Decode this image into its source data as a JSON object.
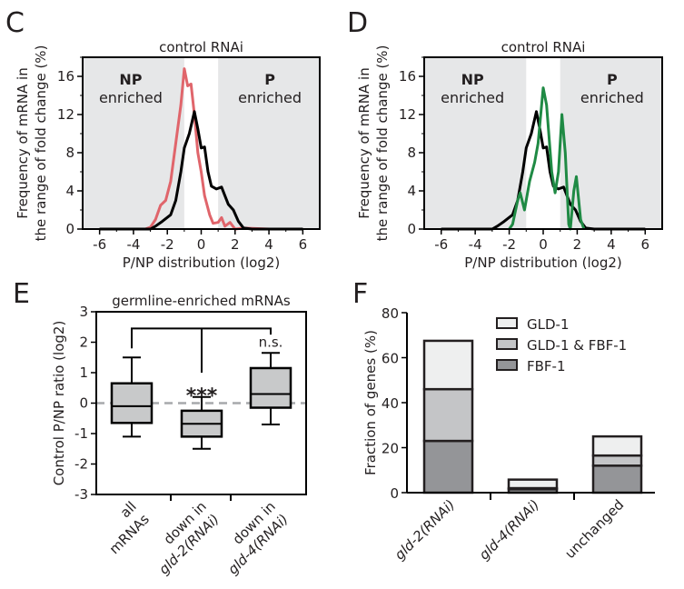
{
  "chart_data": [
    {
      "panel": "C",
      "type": "line",
      "title": "control RNAi",
      "xlabel": "P/NP distribution (log2)",
      "ylabel": [
        "Frequency of mRNA in",
        "the range of fold change (%)"
      ],
      "xlim": [
        -7,
        7
      ],
      "ylim": [
        0,
        18
      ],
      "xticks": [
        "-6",
        "-4",
        "-2",
        "0",
        "2",
        "4",
        "6"
      ],
      "yticks": [
        "0",
        "4",
        "8",
        "12",
        "16"
      ],
      "regions": [
        {
          "bold": "NP",
          "label": "enriched",
          "range": [
            -7,
            -1
          ],
          "color": "#e6e7e8"
        },
        {
          "bold": "P",
          "label": "enriched",
          "range": [
            1,
            7
          ],
          "color": "#e6e7e8"
        }
      ],
      "series": [
        {
          "color": "#e0656b",
          "x": [
            -3.3,
            -3,
            -2.7,
            -2.4,
            -2.1,
            -1.8,
            -1.5,
            -1.2,
            -1,
            -0.8,
            -0.6,
            -0.4,
            -0.2,
            0,
            0.2,
            0.5,
            0.7,
            1,
            1.2,
            1.4,
            1.7,
            2,
            2.5,
            4,
            6
          ],
          "y": [
            0,
            0.2,
            1,
            2.5,
            3,
            5,
            9,
            13,
            16.8,
            15,
            15.2,
            12,
            8,
            6,
            3.5,
            1.5,
            0.6,
            0.7,
            1.2,
            0.3,
            0.7,
            0,
            0.1,
            0,
            0
          ]
        },
        {
          "color": "#000000",
          "x": [
            -6,
            -3.5,
            -3,
            -2.7,
            -2.3,
            -1.8,
            -1.5,
            -1.2,
            -1,
            -0.7,
            -0.4,
            -0.2,
            0,
            0.2,
            0.4,
            0.6,
            0.9,
            1.2,
            1.4,
            1.6,
            1.9,
            2.2,
            2.5,
            3,
            6
          ],
          "y": [
            0,
            0,
            0,
            0.3,
            0.8,
            1.5,
            3,
            6,
            8.5,
            10,
            12.3,
            10.5,
            8.5,
            8.6,
            6,
            4.5,
            4.2,
            4.4,
            3.5,
            2.6,
            2,
            0.8,
            0.1,
            0,
            0
          ]
        }
      ]
    },
    {
      "panel": "D",
      "type": "line",
      "title": "control RNAi",
      "xlabel": "P/NP distribution (log2)",
      "ylabel": [
        "Frequency of mRNA in",
        "the range of fold change (%)"
      ],
      "xlim": [
        -7,
        7
      ],
      "ylim": [
        0,
        18
      ],
      "xticks": [
        "-6",
        "-4",
        "-2",
        "0",
        "2",
        "4",
        "6"
      ],
      "yticks": [
        "0",
        "4",
        "8",
        "12",
        "16"
      ],
      "regions": [
        {
          "bold": "NP",
          "label": "enriched",
          "range": [
            -7,
            -1
          ],
          "color": "#e6e7e8"
        },
        {
          "bold": "P",
          "label": "enriched",
          "range": [
            1,
            7
          ],
          "color": "#e6e7e8"
        }
      ],
      "series": [
        {
          "color": "#000000",
          "x": [
            -6,
            -3.5,
            -3,
            -2.7,
            -2.3,
            -1.8,
            -1.5,
            -1.2,
            -1,
            -0.7,
            -0.4,
            -0.2,
            0,
            0.2,
            0.4,
            0.6,
            0.9,
            1.2,
            1.4,
            1.6,
            1.9,
            2.2,
            2.5,
            3,
            6
          ],
          "y": [
            0,
            0,
            0,
            0.3,
            0.8,
            1.5,
            3,
            6,
            8.5,
            10,
            12.3,
            10.5,
            8.5,
            8.6,
            6,
            4.5,
            4.2,
            4.4,
            3.5,
            2.6,
            2,
            0.8,
            0.1,
            0,
            0
          ]
        },
        {
          "color": "#1f8a44",
          "x": [
            -2,
            -1.8,
            -1.5,
            -1.35,
            -1.1,
            -0.8,
            -0.5,
            -0.3,
            0,
            0.2,
            0.5,
            0.7,
            0.9,
            1.1,
            1.3,
            1.5,
            1.6,
            1.8,
            1.95,
            2.2,
            2.4
          ],
          "y": [
            0,
            0.5,
            3,
            3.8,
            2,
            5,
            7,
            9,
            14.8,
            13,
            6,
            3.8,
            6,
            12,
            8,
            0.5,
            0,
            4,
            5.5,
            1,
            0
          ]
        }
      ]
    },
    {
      "panel": "E",
      "type": "box",
      "title": "germline-enriched mRNAs",
      "ylabel": "Control P/NP ratio (log2)",
      "ylim": [
        -3,
        3
      ],
      "yticks": [
        "3",
        "2",
        "1",
        "0",
        "-1",
        "-2",
        "-3"
      ],
      "reference_line": 0,
      "categories": [
        {
          "lines": [
            "all",
            "mRNAs"
          ],
          "italic_line": ""
        },
        {
          "lines": [
            "down in",
            "gld-2(RNAi)"
          ]
        },
        {
          "lines": [
            "down in",
            "gld-4(RNAi)"
          ]
        }
      ],
      "boxes": [
        {
          "whisker_low": -1.1,
          "q1": -0.65,
          "median": -0.1,
          "q3": 0.65,
          "whisker_high": 1.5,
          "annotation": ""
        },
        {
          "whisker_low": -1.5,
          "q1": -1.1,
          "median": -0.68,
          "q3": -0.25,
          "whisker_high": 0.2,
          "annotation": "***"
        },
        {
          "whisker_low": -0.7,
          "q1": -0.15,
          "median": 0.3,
          "q3": 1.15,
          "whisker_high": 1.65,
          "annotation": "n.s."
        }
      ],
      "box_color": "#c8c9ca"
    },
    {
      "panel": "F",
      "type": "bar",
      "stacked": true,
      "ylabel": "Fraction of genes (%)",
      "ylim": [
        0,
        80
      ],
      "yticks": [
        "0",
        "20",
        "40",
        "60",
        "80"
      ],
      "categories": [
        "gld-2(RNAi)",
        "gld-4(RNAi)",
        "unchanged"
      ],
      "legend_position": "top-right",
      "series": [
        {
          "name": "FBF-1",
          "color": "#949598",
          "values": [
            23,
            1.5,
            12
          ]
        },
        {
          "name": "GLD-1 & FBF-1",
          "color": "#c4c5c7",
          "values": [
            23,
            0.5,
            4.5
          ]
        },
        {
          "name": "GLD-1",
          "color": "#eeefef",
          "values": [
            21.5,
            3.8,
            8.5
          ]
        }
      ],
      "legend_order": [
        "GLD-1",
        "GLD-1 & FBF-1",
        "FBF-1"
      ]
    }
  ]
}
